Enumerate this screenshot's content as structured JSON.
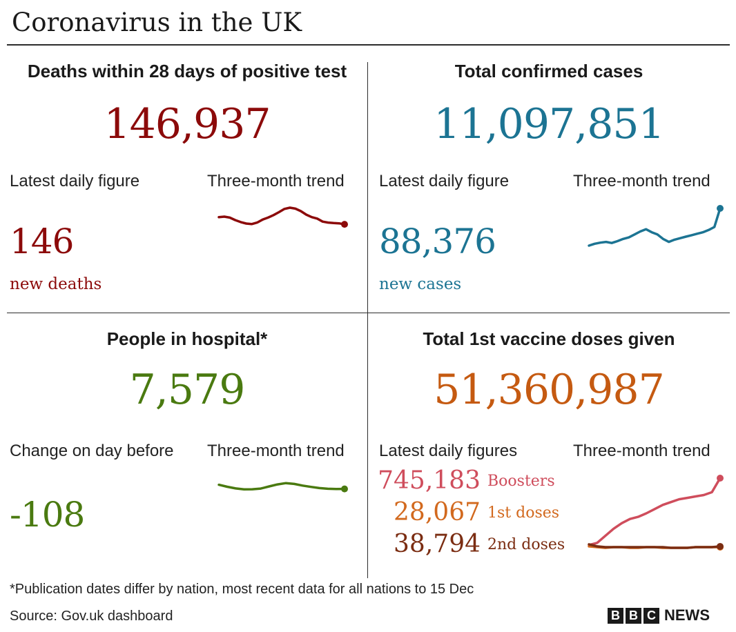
{
  "title": "Coronavirus in the UK",
  "colors": {
    "deaths": "#8c0a0a",
    "cases": "#1c7493",
    "hospital": "#4a7a10",
    "vaccine": "#c55a11",
    "boosters": "#cf4d5c",
    "first_doses": "#d2691e",
    "second_doses": "#7b2d12",
    "rule": "#2b2b2b"
  },
  "deaths": {
    "heading": "Deaths within 28 days of positive test",
    "total": "146,937",
    "latest_label": "Latest daily figure",
    "trend_label": "Three-month trend",
    "latest_value": "146",
    "latest_sub": "new deaths"
  },
  "cases": {
    "heading": "Total confirmed cases",
    "total": "11,097,851",
    "latest_label": "Latest daily figure",
    "trend_label": "Three-month trend",
    "latest_value": "88,376",
    "latest_sub": "new cases"
  },
  "hospital": {
    "heading": "People in hospital*",
    "total": "7,579",
    "latest_label": "Change on day before",
    "trend_label": "Three-month trend",
    "latest_value": "-108"
  },
  "vaccine": {
    "heading": "Total 1st vaccine doses given",
    "total": "51,360,987",
    "latest_label": "Latest daily figures",
    "trend_label": "Three-month trend",
    "rows": [
      {
        "value": "745,183",
        "label": "Boosters"
      },
      {
        "value": "28,067",
        "label": "1st doses"
      },
      {
        "value": "38,794",
        "label": "2nd doses"
      }
    ]
  },
  "footnote": "*Publication dates differ by nation, most recent data for all nations to 15 Dec",
  "source": "Source: Gov.uk dashboard",
  "logo": {
    "letters": [
      "B",
      "B",
      "C"
    ],
    "word": "NEWS"
  },
  "chart_data": [
    {
      "type": "line",
      "series": [
        {
          "values": [
            0.62,
            0.64,
            0.6,
            0.5,
            0.42,
            0.36,
            0.34,
            0.4,
            0.52,
            0.6,
            0.7,
            0.82,
            0.95,
            1.0,
            0.96,
            0.86,
            0.72,
            0.62,
            0.56,
            0.44,
            0.4,
            0.38,
            0.37,
            0.33
          ]
        }
      ]
    },
    {
      "type": "line",
      "series": [
        {
          "values": [
            0.0,
            0.05,
            0.08,
            0.1,
            0.07,
            0.12,
            0.18,
            0.22,
            0.3,
            0.38,
            0.44,
            0.36,
            0.3,
            0.18,
            0.1,
            0.16,
            0.2,
            0.24,
            0.28,
            0.32,
            0.36,
            0.42,
            0.5,
            1.0
          ]
        }
      ]
    },
    {
      "type": "line",
      "series": [
        {
          "values": [
            0.6,
            0.48,
            0.38,
            0.32,
            0.33,
            0.37,
            0.5,
            0.62,
            0.7,
            0.65,
            0.55,
            0.47,
            0.4,
            0.36,
            0.34,
            0.35
          ]
        }
      ]
    },
    {
      "type": "line",
      "series": [
        {
          "name": "Boosters",
          "values": [
            0.05,
            0.08,
            0.18,
            0.28,
            0.36,
            0.42,
            0.45,
            0.5,
            0.56,
            0.62,
            0.66,
            0.7,
            0.72,
            0.74,
            0.76,
            0.8,
            1.0
          ]
        },
        {
          "name": "1st doses",
          "values": [
            0.03,
            0.02,
            0.01,
            0.02,
            0.02,
            0.01,
            0.01,
            0.02,
            0.02,
            0.01,
            0.01,
            0.01,
            0.01,
            0.02,
            0.02,
            0.02,
            0.02
          ]
        },
        {
          "name": "2nd doses",
          "values": [
            0.06,
            0.03,
            0.02,
            0.02,
            0.02,
            0.02,
            0.02,
            0.02,
            0.02,
            0.02,
            0.01,
            0.01,
            0.01,
            0.02,
            0.02,
            0.02,
            0.03
          ]
        }
      ]
    }
  ]
}
